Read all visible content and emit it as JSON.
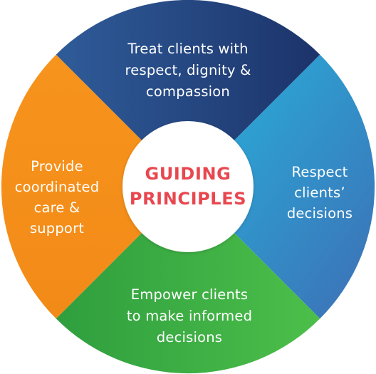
{
  "center": {
    "line1": "GUIDING",
    "line2": "PRINCIPLES"
  },
  "segments": {
    "top": {
      "line1": "Treat clients with",
      "line2": "respect, dignity &",
      "line3": "compassion"
    },
    "right": {
      "line1": "Respect",
      "line2": "clients’",
      "line3": "decisions"
    },
    "bottom": {
      "line1": "Empower clients",
      "line2": "to make informed",
      "line3": "decisions"
    },
    "left": {
      "line1": "Provide",
      "line2": "coordinated",
      "line3": "care &",
      "line4": "support"
    }
  },
  "colors": {
    "top": [
      "#1e3a6e",
      "#2f5c99"
    ],
    "right": [
      "#2aa8d6",
      "#3a72b8"
    ],
    "bottom": [
      "#3db54a",
      "#2e9a3c"
    ],
    "left": [
      "#f7931e",
      "#f08a18"
    ],
    "center_text": "#e8474f",
    "hub": "#ffffff"
  }
}
